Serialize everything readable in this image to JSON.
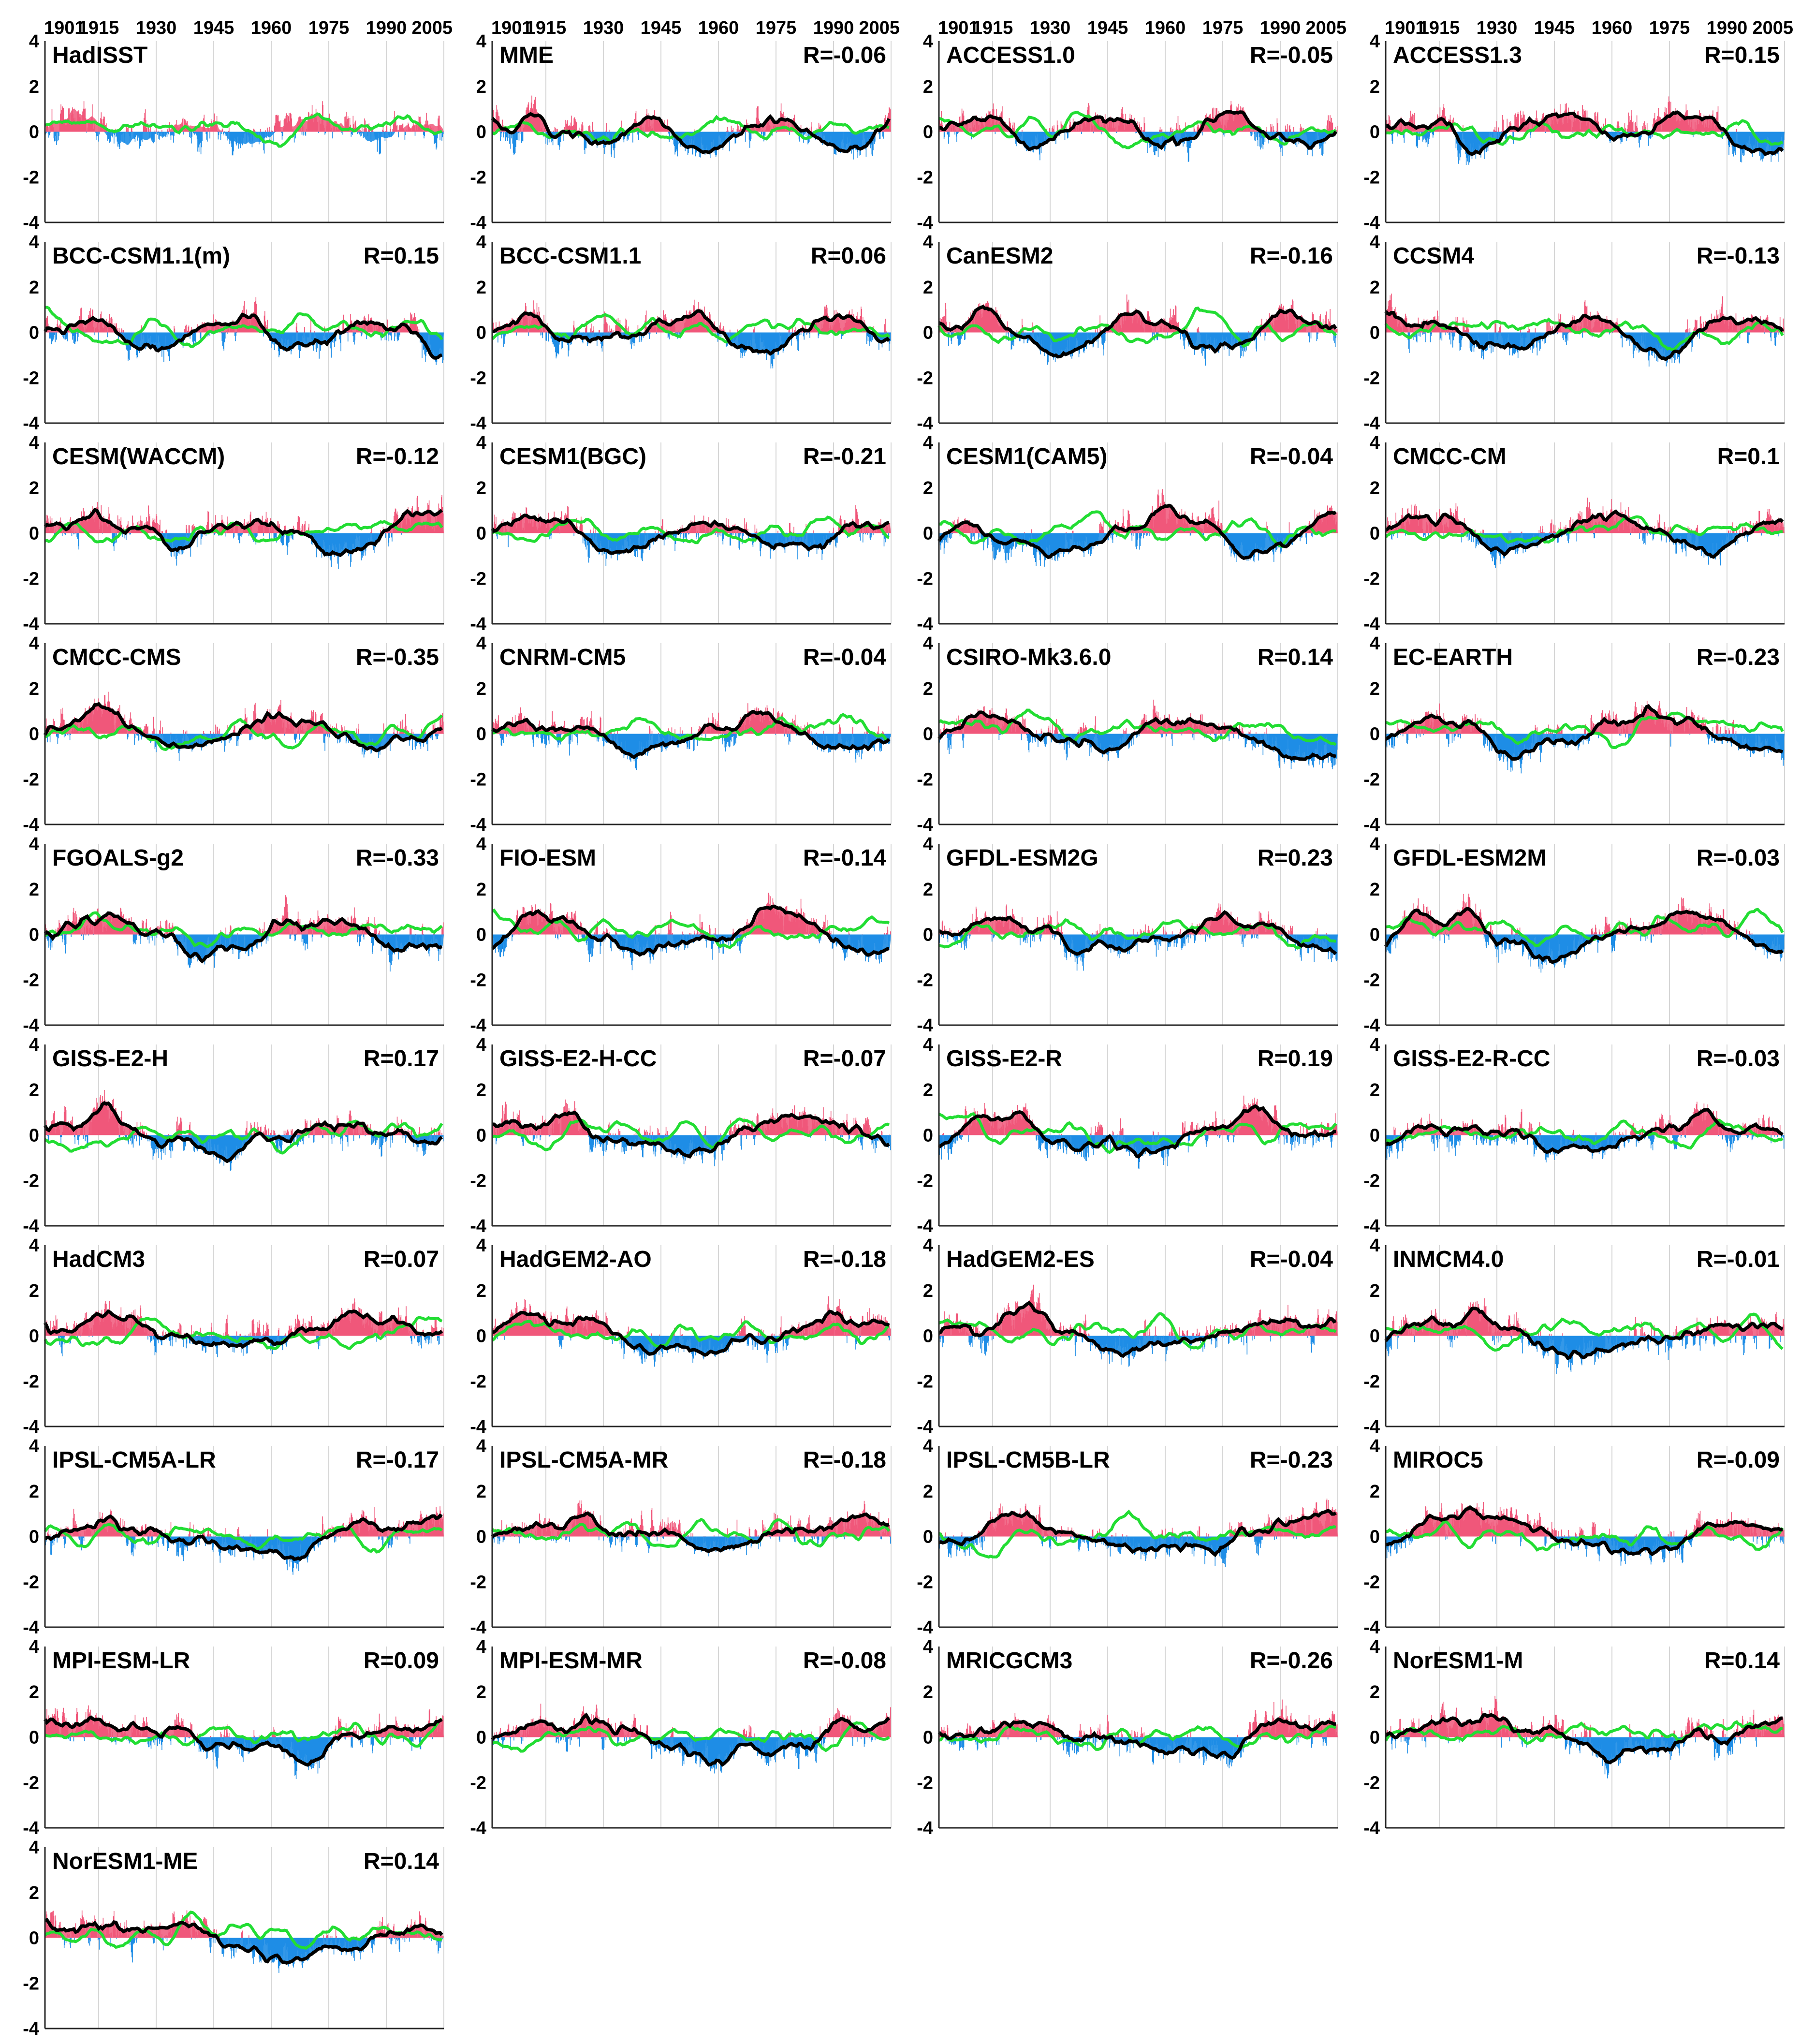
{
  "chart_data": {
    "type": "area",
    "layout": "small-multiples grid, 4 columns",
    "x_ticks": [
      "1901",
      "1915",
      "1930",
      "1945",
      "1960",
      "1975",
      "1990",
      "2005"
    ],
    "xlim": [
      1901,
      2005
    ],
    "y_ticks": [
      "4",
      "2",
      "0",
      "-2",
      "-4"
    ],
    "ylim": [
      -4,
      4
    ],
    "grid": "vertical",
    "colors": {
      "positive": "#f0577a",
      "negative": "#1e8de6",
      "smoothed": "#000000",
      "reference": "#22dd33"
    },
    "panels": [
      {
        "name": "HadISST",
        "r": ""
      },
      {
        "name": "MME",
        "r": "R=-0.06"
      },
      {
        "name": "ACCESS1.0",
        "r": "R=-0.05"
      },
      {
        "name": "ACCESS1.3",
        "r": "R=0.15"
      },
      {
        "name": "BCC-CSM1.1(m)",
        "r": "R=0.15"
      },
      {
        "name": "BCC-CSM1.1",
        "r": "R=0.06"
      },
      {
        "name": "CanESM2",
        "r": "R=-0.16"
      },
      {
        "name": "CCSM4",
        "r": "R=-0.13"
      },
      {
        "name": "CESM(WACCM)",
        "r": "R=-0.12"
      },
      {
        "name": "CESM1(BGC)",
        "r": "R=-0.21"
      },
      {
        "name": "CESM1(CAM5)",
        "r": "R=-0.04"
      },
      {
        "name": "CMCC-CM",
        "r": "R=0.1"
      },
      {
        "name": "CMCC-CMS",
        "r": "R=-0.35"
      },
      {
        "name": "CNRM-CM5",
        "r": "R=-0.04"
      },
      {
        "name": "CSIRO-Mk3.6.0",
        "r": "R=0.14"
      },
      {
        "name": "EC-EARTH",
        "r": "R=-0.23"
      },
      {
        "name": "FGOALS-g2",
        "r": "R=-0.33"
      },
      {
        "name": "FIO-ESM",
        "r": "R=-0.14"
      },
      {
        "name": "GFDL-ESM2G",
        "r": "R=0.23"
      },
      {
        "name": "GFDL-ESM2M",
        "r": "R=-0.03"
      },
      {
        "name": "GISS-E2-H",
        "r": "R=0.17"
      },
      {
        "name": "GISS-E2-H-CC",
        "r": "R=-0.07"
      },
      {
        "name": "GISS-E2-R",
        "r": "R=0.19"
      },
      {
        "name": "GISS-E2-R-CC",
        "r": "R=-0.03"
      },
      {
        "name": "HadCM3",
        "r": "R=0.07"
      },
      {
        "name": "HadGEM2-AO",
        "r": "R=-0.18"
      },
      {
        "name": "HadGEM2-ES",
        "r": "R=-0.04"
      },
      {
        "name": "INMCM4.0",
        "r": "R=-0.01"
      },
      {
        "name": "IPSL-CM5A-LR",
        "r": "R=-0.17"
      },
      {
        "name": "IPSL-CM5A-MR",
        "r": "R=-0.18"
      },
      {
        "name": "IPSL-CM5B-LR",
        "r": "R=-0.23"
      },
      {
        "name": "MIROC5",
        "r": "R=-0.09"
      },
      {
        "name": "MPI-ESM-LR",
        "r": "R=0.09"
      },
      {
        "name": "MPI-ESM-MR",
        "r": "R=-0.08"
      },
      {
        "name": "MRICGCM3",
        "r": "R=-0.26"
      },
      {
        "name": "NorESM1-M",
        "r": "R=0.14"
      },
      {
        "name": "NorESM1-ME",
        "r": "R=0.14"
      }
    ]
  }
}
